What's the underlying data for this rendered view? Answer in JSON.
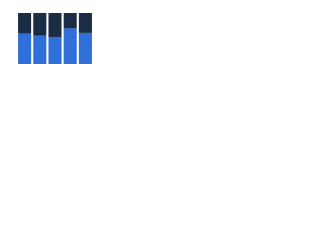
{
  "chart_data": {
    "type": "stacked_bar",
    "categories": [
      null,
      null,
      null,
      null,
      null
    ],
    "series": [
      {
        "color": "#2e6fd9",
        "values": [
          60,
          56,
          53,
          70,
          61
        ]
      },
      {
        "color": "#1b2d45",
        "values": [
          40,
          44,
          47,
          30,
          39
        ]
      }
    ],
    "ylim": [
      0,
      100
    ]
  }
}
